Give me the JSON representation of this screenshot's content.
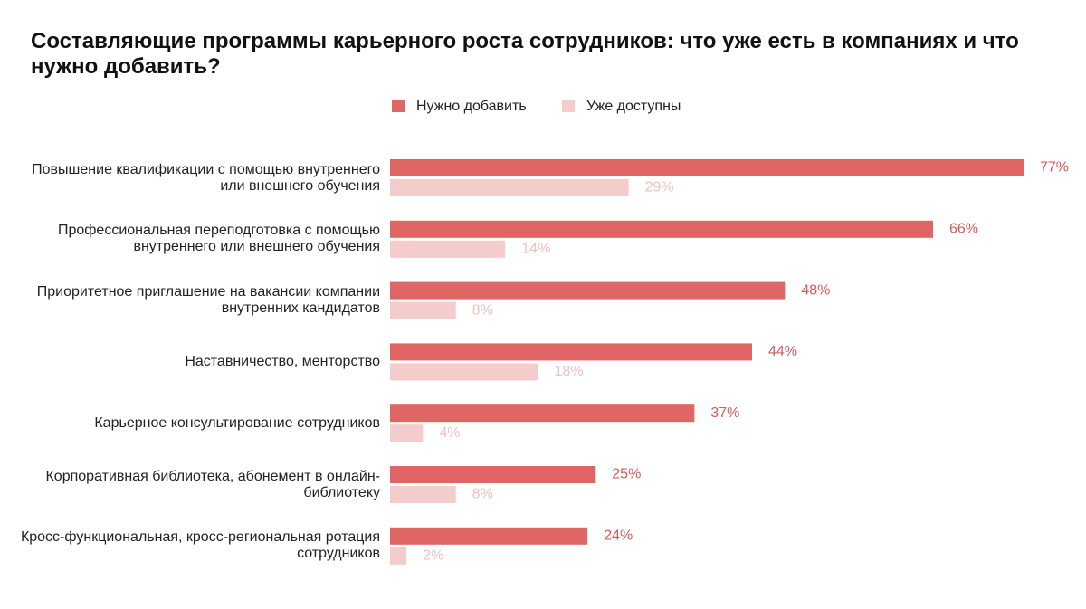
{
  "chart_data": {
    "type": "bar",
    "orientation": "horizontal",
    "title": "Составляющие программы карьерного роста сотрудников: что уже есть в компаниях и что нужно добавить?",
    "categories": [
      "Повышение квалификации с помощью внутреннего или внешнего обучения",
      "Профессиональная переподготовка с помощью внутреннего или внешнего обучения",
      "Приоритетное приглашение на вакансии компании внутренних кандидатов",
      "Наставничество, менторство",
      "Карьерное консультирование сотрудников",
      "Корпоративная библиотека, абонемент в онлайн-библиотеку",
      "Кросс-функциональная, кросс-региональная ротация сотрудников"
    ],
    "series": [
      {
        "name": "Нужно добавить",
        "color": "#e06666",
        "label_color": "#d65a5a",
        "values": [
          77,
          66,
          48,
          44,
          37,
          25,
          24
        ],
        "value_labels": [
          "77%",
          "66%",
          "48%",
          "44%",
          "37%",
          "25%",
          "24%"
        ]
      },
      {
        "name": "Уже доступны",
        "color": "#f4cccc",
        "label_color": "#f0c0c0",
        "values": [
          29,
          14,
          8,
          18,
          4,
          8,
          2
        ],
        "value_labels": [
          "29%",
          "14%",
          "8%",
          "18%",
          "4%",
          "8%",
          "2%"
        ]
      }
    ],
    "legend": "top"
  }
}
